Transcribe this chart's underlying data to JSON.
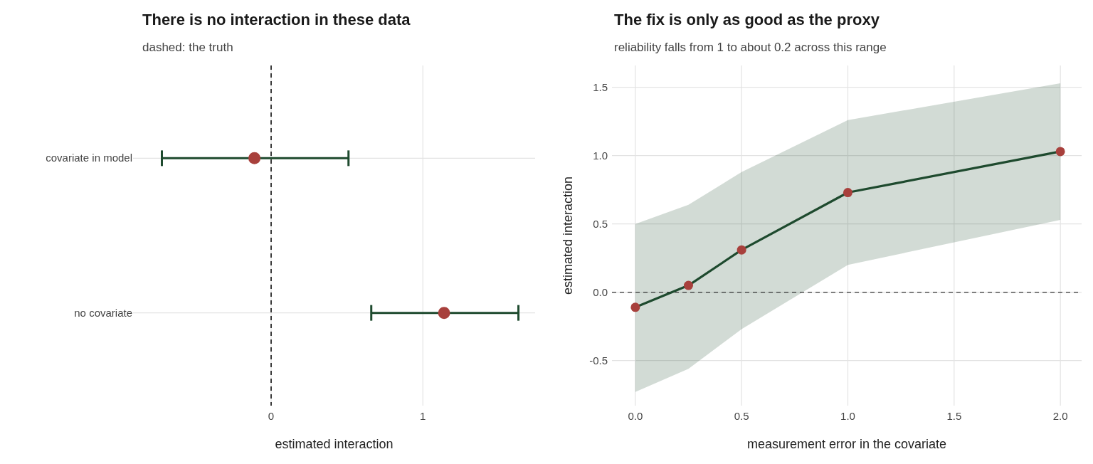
{
  "chart_data": [
    {
      "type": "scatter",
      "title": "There is no interaction in these data",
      "subtitle": "dashed: the truth",
      "xlabel": "estimated interaction",
      "orientation": "horizontal",
      "categories": [
        "covariate in model",
        "no covariate"
      ],
      "series": [
        {
          "color": "#1e4a2e",
          "colors": [
            "#a8403c",
            "#a8403c"
          ],
          "values": [
            -0.11,
            1.14
          ],
          "errors": [
            [
              -0.72,
              0.51
            ],
            [
              0.66,
              1.63
            ]
          ]
        }
      ],
      "xlim": [
        -0.91,
        1.74
      ],
      "xticks": [
        0,
        1
      ],
      "grid": true,
      "marker": "circle",
      "ref_lines": [
        {
          "axis": "x",
          "value": 0,
          "line_style": "dashed",
          "color": "#000000"
        }
      ]
    },
    {
      "type": "line",
      "title": "The fix is only as good as the proxy",
      "subtitle": "reliability falls from 1 to about 0.2 across this range",
      "xlabel": "measurement error in the covariate",
      "ylabel": "estimated interaction",
      "x": [
        0,
        0.25,
        0.5,
        1.0,
        2.0
      ],
      "series": [
        {
          "color": "#1e4a2e",
          "colors": [
            "#a8403c",
            "#a8403c",
            "#a8403c",
            "#a8403c",
            "#a8403c"
          ],
          "values": [
            -0.11,
            0.05,
            0.31,
            0.73,
            1.03
          ],
          "lower": [
            -0.73,
            -0.56,
            -0.27,
            0.2,
            0.53
          ],
          "upper": [
            0.5,
            0.64,
            0.88,
            1.26,
            1.53
          ]
        }
      ],
      "xlim": [
        -0.11,
        2.1
      ],
      "ylim": [
        -0.83,
        1.66
      ],
      "xticks": [
        {
          "value": 0,
          "label": "0.0"
        },
        {
          "value": 0.5,
          "label": "0.5"
        },
        {
          "value": 1,
          "label": "1.0"
        },
        {
          "value": 1.5,
          "label": "1.5"
        },
        {
          "value": 2,
          "label": "2.0"
        }
      ],
      "yticks": [
        {
          "value": -0.5,
          "label": "-0.5"
        },
        {
          "value": 0,
          "label": "0.0"
        },
        {
          "value": 0.5,
          "label": "0.5"
        },
        {
          "value": 1,
          "label": "1.0"
        },
        {
          "value": 1.5,
          "label": "1.5"
        }
      ],
      "grid": true,
      "marker": "circle",
      "line_style": "solid",
      "ref_lines": [
        {
          "axis": "y",
          "value": 0,
          "line_style": "dashed",
          "color": "#333333"
        }
      ]
    }
  ]
}
